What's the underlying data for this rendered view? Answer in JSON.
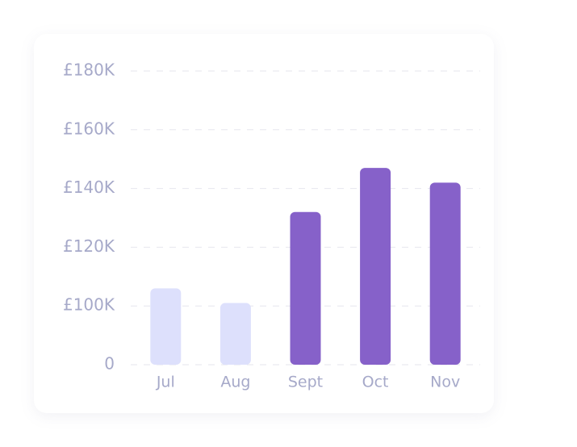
{
  "chart_data": {
    "type": "bar",
    "categories": [
      "Jul",
      "Aug",
      "Sept",
      "Oct",
      "Nov"
    ],
    "values": [
      106000,
      101000,
      132000,
      147000,
      142000
    ],
    "colors": [
      "#dde0fc",
      "#dde0fc",
      "#8661c9",
      "#8661c9",
      "#8661c9"
    ],
    "ylim": [
      0,
      180000
    ],
    "yticks": [
      0,
      {
        "value": 100000,
        "label": "£100K"
      },
      {
        "value": 120000,
        "label": "£120K"
      },
      {
        "value": 140000,
        "label": "£140K"
      },
      {
        "value": 160000,
        "label": "£160K"
      },
      {
        "value": 180000,
        "label": "£180K"
      }
    ],
    "grid": true
  }
}
